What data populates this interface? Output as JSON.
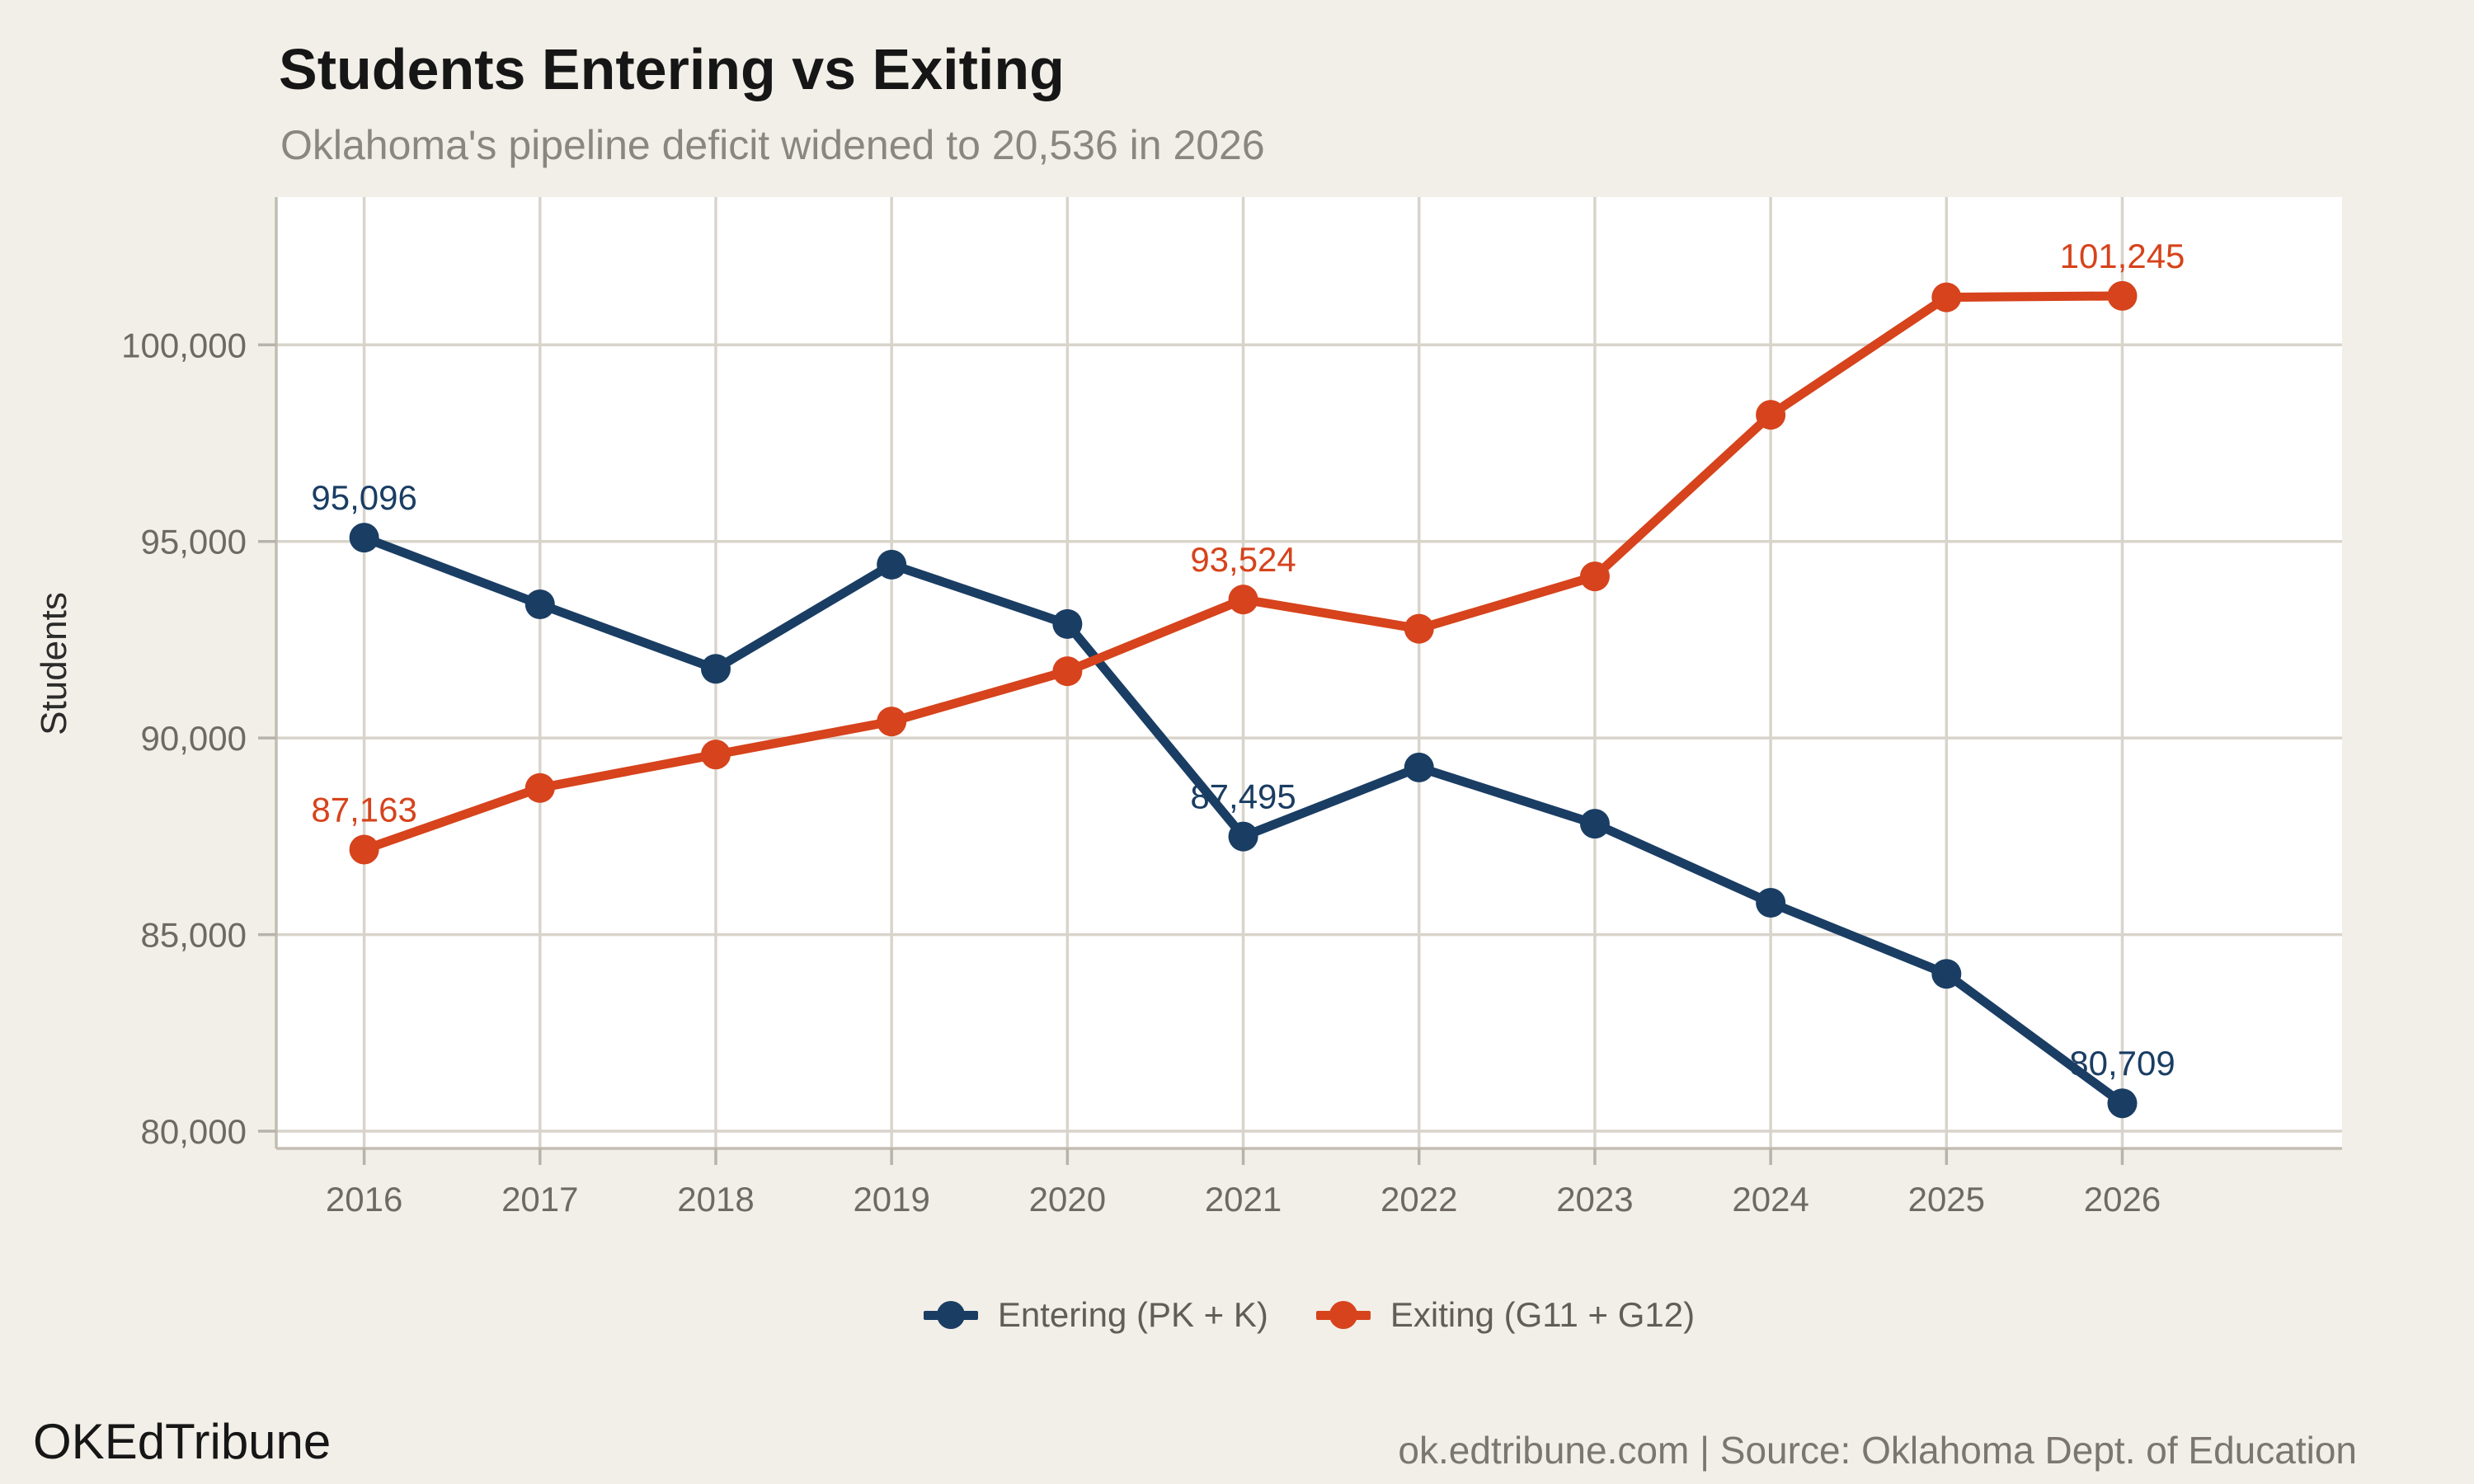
{
  "header": {
    "title": "Students Entering vs Exiting",
    "subtitle": "Oklahoma's pipeline deficit widened to 20,536 in 2026"
  },
  "footer": {
    "brand": "OKEdTribune",
    "source": "ok.edtribune.com | Source: Oklahoma Dept. of Education"
  },
  "colors": {
    "background": "#f2efe8",
    "panel": "#ffffff",
    "grid": "#d9d4cb",
    "axis_line": "#c2bdb3",
    "tick_mark": "#b8b3aa",
    "axis_text": "#6e6a63",
    "entering": "#1a3d63",
    "exiting": "#d6431c"
  },
  "chart_data": {
    "type": "line",
    "title": "Students Entering vs Exiting",
    "subtitle": "Oklahoma's pipeline deficit widened to 20,536 in 2026",
    "xlabel": "",
    "ylabel": "Students",
    "x": [
      2016,
      2017,
      2018,
      2019,
      2020,
      2021,
      2022,
      2023,
      2024,
      2025,
      2026
    ],
    "x_tick_labels": [
      "2016",
      "2017",
      "2018",
      "2019",
      "2020",
      "2021",
      "2022",
      "2023",
      "2024",
      "2025",
      "2026"
    ],
    "y_ticks": [
      {
        "value": 80000,
        "label": "80,000"
      },
      {
        "value": 85000,
        "label": "85,000"
      },
      {
        "value": 90000,
        "label": "90,000"
      },
      {
        "value": 95000,
        "label": "95,000"
      },
      {
        "value": 100000,
        "label": "100,000"
      }
    ],
    "xlim": [
      2015.5,
      2027.25
    ],
    "ylim": [
      79560,
      103760
    ],
    "grid": true,
    "legend_position": "bottom",
    "series": [
      {
        "name": "Entering (PK + K)",
        "color": "#1a3d63",
        "values": [
          95096,
          93400,
          91760,
          94410,
          92900,
          87495,
          89250,
          87820,
          85810,
          84000,
          80709
        ],
        "point_labels": [
          {
            "index": 0,
            "text": "95,096"
          },
          {
            "index": 5,
            "text": "87,495"
          },
          {
            "index": 10,
            "text": "80,709"
          }
        ]
      },
      {
        "name": "Exiting (G11 + G12)",
        "color": "#d6431c",
        "values": [
          87163,
          88730,
          89580,
          90420,
          91700,
          93524,
          92780,
          94110,
          98220,
          101210,
          101245
        ],
        "point_labels": [
          {
            "index": 0,
            "text": "87,163"
          },
          {
            "index": 5,
            "text": "93,524"
          },
          {
            "index": 10,
            "text": "101,245"
          }
        ]
      }
    ]
  }
}
